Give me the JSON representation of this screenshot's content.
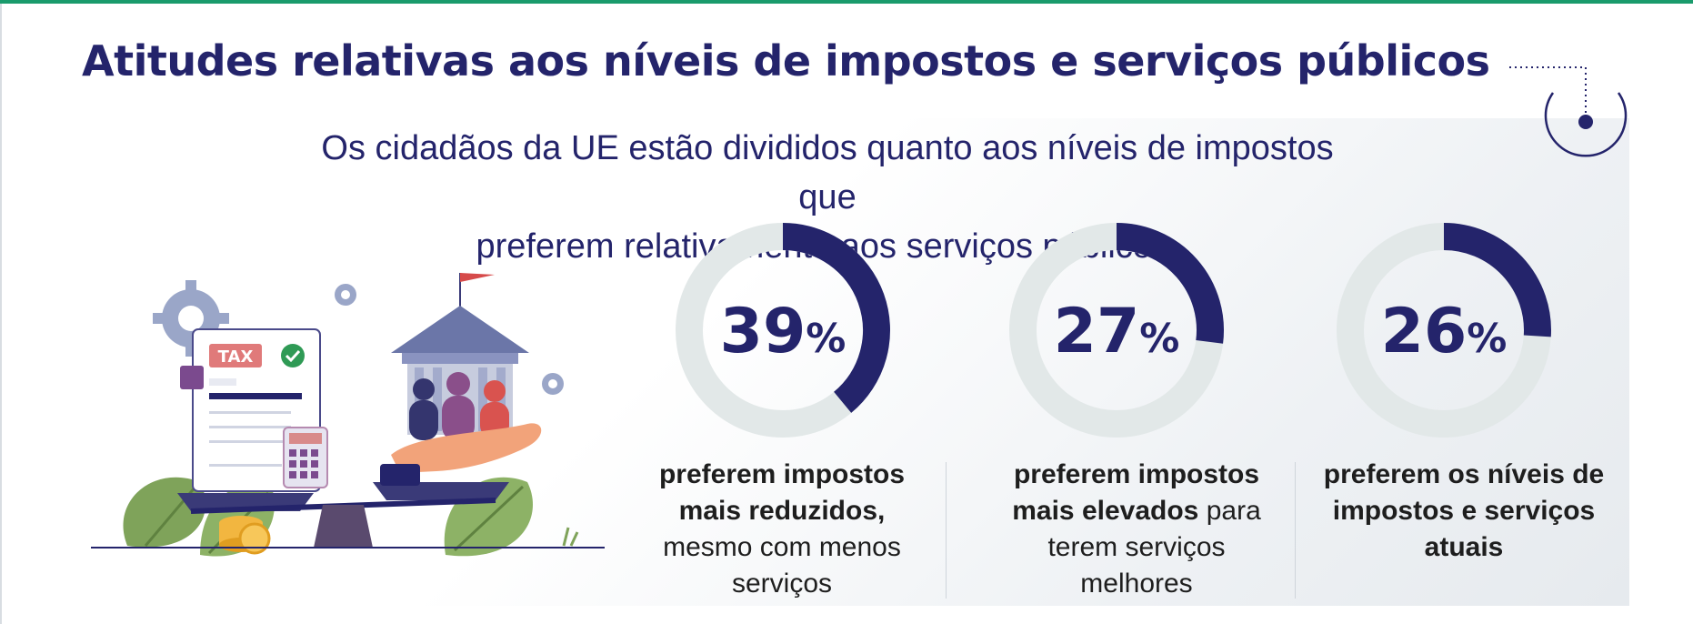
{
  "page": {
    "title": "Atitudes relativas aos níveis de impostos e serviços públicos",
    "subtitle_line1": "Os cidadãos da UE estão divididos quanto aos níveis de impostos que",
    "subtitle_line2": "preferem relativamente aos serviços públicos."
  },
  "illustration": {
    "tax_label": "TAX"
  },
  "colors": {
    "accent": "#24246b",
    "ring_track": "#e2e8e8",
    "top_bar": "#1a9b6c"
  },
  "chart_data": {
    "type": "pie",
    "subtype": "donut",
    "items": [
      {
        "value": 39,
        "label": "39",
        "unit": "%",
        "caption_bold": "preferem impostos mais reduzidos,",
        "caption_regular": "mesmo com menos serviços"
      },
      {
        "value": 27,
        "label": "27",
        "unit": "%",
        "caption_bold": "preferem impostos mais elevados",
        "caption_regular": "para terem serviços melhores"
      },
      {
        "value": 26,
        "label": "26",
        "unit": "%",
        "caption_bold": "preferem os níveis de impostos e serviços atuais",
        "caption_regular": ""
      }
    ]
  }
}
